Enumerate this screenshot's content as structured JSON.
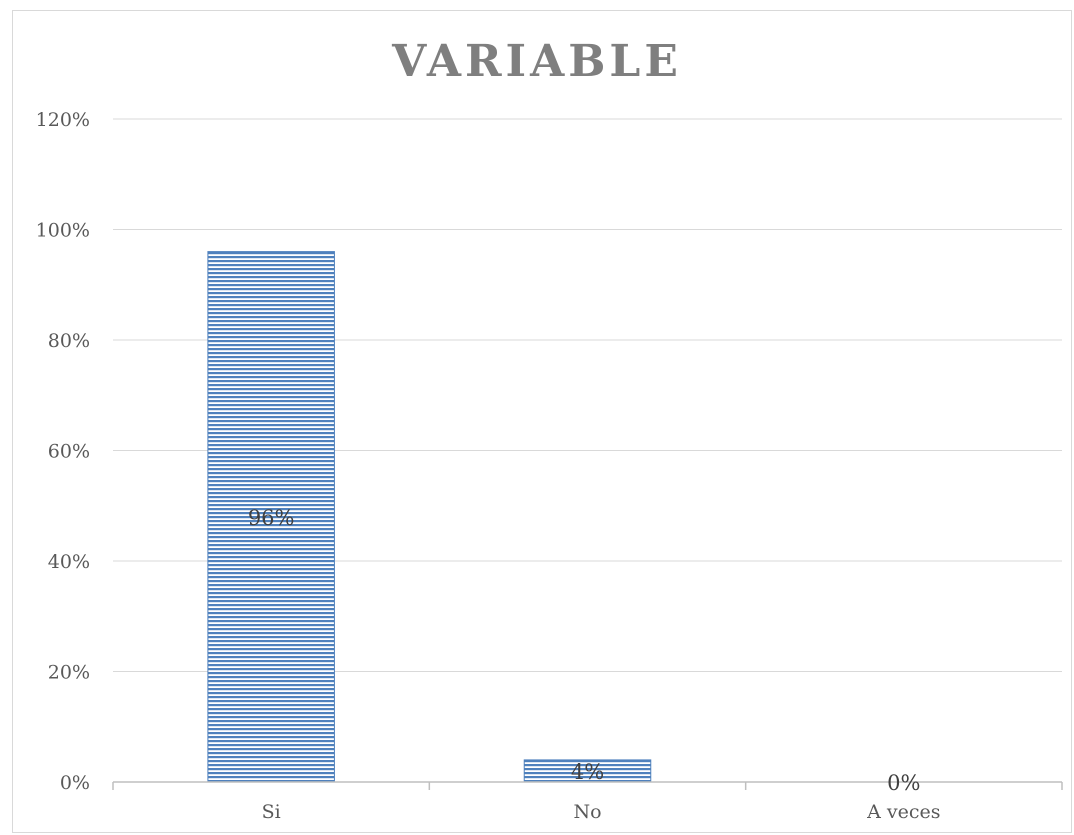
{
  "chart_data": {
    "type": "bar",
    "title": "VARIABLE",
    "categories": [
      "Si",
      "No",
      "A veces"
    ],
    "values": [
      96,
      4,
      0
    ],
    "value_labels": [
      "96%",
      "4%",
      "0%"
    ],
    "ylim": [
      0,
      120
    ],
    "yticks": [
      0,
      20,
      40,
      60,
      80,
      100,
      120
    ],
    "ytick_labels": [
      "0%",
      "20%",
      "40%",
      "60%",
      "80%",
      "100%",
      "120%"
    ],
    "grid": true,
    "legend": "none",
    "bar_color": "#4f81bd",
    "bar_pattern": "horizontal-stripes"
  }
}
